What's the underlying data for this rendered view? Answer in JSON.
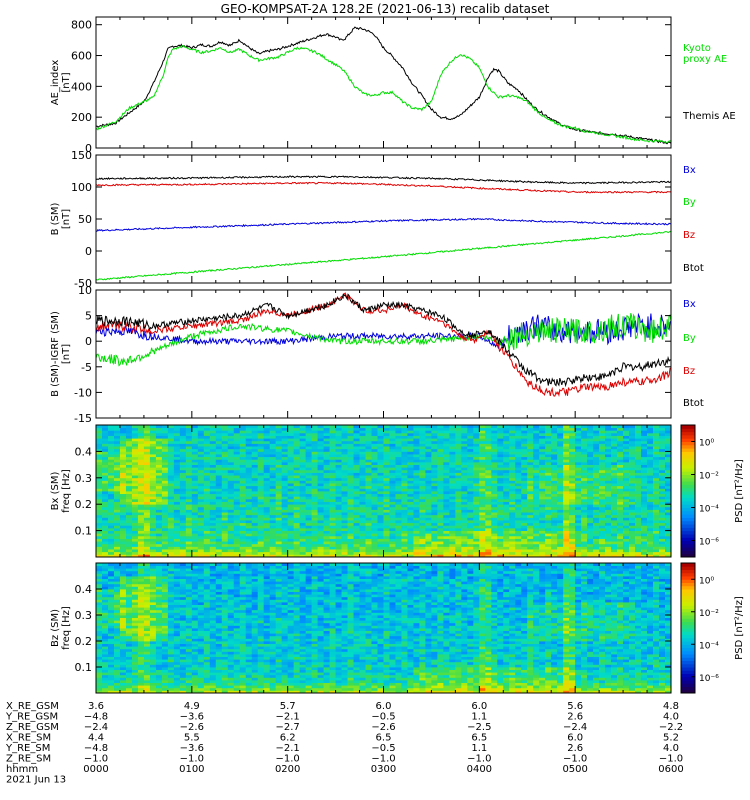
{
  "title": "GEO-KOMPSAT-2A 128.2E (2021-06-13) recalib dataset",
  "chart_data": [
    {
      "id": "ae",
      "type": "line",
      "ylabel": "AE_index",
      "yunit": "[nT]",
      "ylim": [
        0,
        850
      ],
      "yticks": [
        0,
        200,
        400,
        600,
        800
      ],
      "xlim": [
        0,
        6
      ],
      "series": [
        {
          "name": "Themis AE",
          "color": "#000000",
          "x": [
            0,
            0.2,
            0.35,
            0.5,
            0.6,
            0.7,
            0.75,
            0.8,
            0.9,
            1.0,
            1.1,
            1.2,
            1.3,
            1.4,
            1.5,
            1.6,
            1.7,
            1.8,
            1.9,
            2.0,
            2.1,
            2.2,
            2.3,
            2.4,
            2.5,
            2.55,
            2.6,
            2.7,
            2.8,
            2.9,
            3.0,
            3.1,
            3.2,
            3.3,
            3.4,
            3.5,
            3.6,
            3.7,
            3.8,
            3.9,
            4.0,
            4.05,
            4.1,
            4.15,
            4.2,
            4.3,
            4.4,
            4.5,
            4.6,
            4.7,
            4.8,
            4.9,
            5.0,
            5.1,
            5.2,
            5.3,
            5.4,
            5.5,
            5.6,
            5.7,
            5.8,
            5.9,
            6.0
          ],
          "y": [
            140,
            160,
            230,
            300,
            420,
            560,
            640,
            660,
            665,
            650,
            670,
            660,
            690,
            665,
            700,
            650,
            610,
            630,
            640,
            660,
            680,
            700,
            720,
            740,
            720,
            700,
            710,
            780,
            770,
            740,
            650,
            590,
            520,
            420,
            340,
            250,
            200,
            190,
            210,
            270,
            330,
            400,
            470,
            510,
            500,
            420,
            380,
            310,
            250,
            210,
            170,
            140,
            120,
            110,
            100,
            95,
            90,
            80,
            70,
            60,
            50,
            40,
            30
          ]
        },
        {
          "name": "Kyoto proxy AE",
          "color": "#00dd00",
          "x": [
            0,
            0.2,
            0.35,
            0.5,
            0.6,
            0.7,
            0.75,
            0.8,
            0.9,
            1.0,
            1.1,
            1.2,
            1.3,
            1.4,
            1.5,
            1.6,
            1.7,
            1.8,
            1.9,
            2.0,
            2.1,
            2.2,
            2.3,
            2.4,
            2.5,
            2.55,
            2.6,
            2.7,
            2.8,
            2.9,
            3.0,
            3.1,
            3.2,
            3.3,
            3.4,
            3.5,
            3.6,
            3.7,
            3.8,
            3.9,
            4.0,
            4.05,
            4.1,
            4.15,
            4.2,
            4.3,
            4.4,
            4.5,
            4.6,
            4.7,
            4.8,
            4.9,
            5.0,
            5.1,
            5.2,
            5.3,
            5.4,
            5.5,
            5.6,
            5.7,
            5.8,
            5.9,
            6.0
          ],
          "y": [
            120,
            170,
            260,
            300,
            330,
            470,
            580,
            640,
            660,
            640,
            620,
            630,
            650,
            620,
            640,
            600,
            570,
            580,
            590,
            620,
            650,
            640,
            620,
            580,
            540,
            520,
            490,
            400,
            350,
            340,
            360,
            360,
            300,
            260,
            250,
            300,
            480,
            560,
            610,
            580,
            520,
            450,
            390,
            360,
            330,
            340,
            330,
            300,
            240,
            190,
            160,
            140,
            130,
            110,
            100,
            90,
            80,
            70,
            60,
            50,
            45,
            45,
            40
          ]
        }
      ]
    },
    {
      "id": "b",
      "type": "line",
      "ylabel": "B (SM)",
      "yunit": "[nT]",
      "ylim": [
        -50,
        150
      ],
      "yticks": [
        -50,
        0,
        50,
        100,
        150
      ],
      "xlim": [
        0,
        6
      ],
      "legend": [
        "Bx",
        "By",
        "Bz",
        "Btot"
      ],
      "series": [
        {
          "name": "Bx",
          "color": "#0000dd",
          "x": [
            0,
            1,
            2,
            3,
            4,
            4.5,
            5,
            5.5,
            6
          ],
          "y": [
            32,
            37,
            42,
            47,
            50,
            47,
            45,
            43,
            42
          ]
        },
        {
          "name": "By",
          "color": "#00dd00",
          "x": [
            0,
            1,
            2,
            3,
            4,
            5,
            6
          ],
          "y": [
            -45,
            -33,
            -21,
            -9,
            4,
            17,
            30
          ]
        },
        {
          "name": "Bz",
          "color": "#dd0000",
          "x": [
            0,
            1,
            2,
            2.6,
            3,
            3.6,
            4,
            4.5,
            5,
            5.5,
            6
          ],
          "y": [
            103,
            104,
            106,
            106,
            104,
            101,
            98,
            95,
            92,
            92,
            92
          ]
        },
        {
          "name": "Btot",
          "color": "#000000",
          "x": [
            0,
            1,
            2,
            2.6,
            3,
            3.6,
            4,
            4.5,
            5,
            5.5,
            6
          ],
          "y": [
            113,
            114,
            116,
            116,
            115,
            113,
            111,
            108,
            106,
            107,
            108
          ]
        }
      ]
    },
    {
      "id": "db",
      "type": "line",
      "ylabel": "B (SM)-IGRF (SM)",
      "yunit": "[nT]",
      "ylim": [
        -15,
        10
      ],
      "yticks": [
        -15,
        -10,
        -5,
        0,
        5,
        10
      ],
      "xlim": [
        0,
        6
      ],
      "legend": [
        "Bx",
        "By",
        "Bz",
        "Btot"
      ],
      "series": [
        {
          "name": "Bx",
          "color": "#0000dd",
          "x": [
            0,
            0.3,
            0.6,
            1.0,
            1.5,
            2.0,
            2.5,
            3.0,
            3.5,
            4.0,
            4.2,
            4.4,
            4.6,
            4.8,
            5.0,
            5.2,
            5.4,
            5.6,
            5.8,
            6.0
          ],
          "y": [
            2,
            2,
            1,
            0,
            0,
            0,
            1,
            1,
            1,
            1,
            -1,
            2,
            3,
            2,
            2,
            2,
            2,
            3,
            3,
            3
          ]
        },
        {
          "name": "By",
          "color": "#00dd00",
          "x": [
            0,
            0.3,
            0.6,
            1.0,
            1.5,
            2.0,
            2.5,
            3.0,
            3.5,
            4.0,
            4.2,
            4.4,
            4.6,
            4.8,
            5.0,
            5.2,
            5.4,
            5.6,
            5.8,
            6.0
          ],
          "y": [
            -3,
            -4,
            -2,
            1,
            3,
            2,
            0,
            0,
            0,
            1,
            0,
            1,
            2,
            2,
            2,
            2,
            3,
            3,
            2,
            3
          ]
        },
        {
          "name": "Bz",
          "color": "#dd0000",
          "x": [
            0,
            0.3,
            0.6,
            1.0,
            1.5,
            1.8,
            2.0,
            2.4,
            2.6,
            2.8,
            3.0,
            3.2,
            3.4,
            3.6,
            3.8,
            3.95,
            4.0,
            4.1,
            4.2,
            4.3,
            4.5,
            4.7,
            4.9,
            5.1,
            5.3,
            5.5,
            5.7,
            5.9,
            6.0
          ],
          "y": [
            3,
            3,
            2,
            3,
            4,
            6,
            5,
            7,
            9,
            6,
            6,
            7,
            5,
            4,
            1,
            0,
            1,
            2,
            -1,
            -3,
            -8,
            -10,
            -10,
            -9,
            -9,
            -8,
            -8,
            -7,
            -6
          ]
        },
        {
          "name": "Btot",
          "color": "#000000",
          "x": [
            0,
            0.3,
            0.6,
            1.0,
            1.5,
            1.8,
            2.0,
            2.4,
            2.6,
            2.8,
            3.0,
            3.2,
            3.4,
            3.6,
            3.8,
            3.95,
            4.0,
            4.1,
            4.2,
            4.3,
            4.5,
            4.7,
            4.9,
            5.1,
            5.3,
            5.5,
            5.7,
            5.9,
            6.0
          ],
          "y": [
            4,
            4,
            3,
            4,
            5,
            7,
            5,
            7,
            9,
            6,
            7,
            7,
            6,
            5,
            2,
            1,
            2,
            2,
            0,
            -2,
            -6,
            -8,
            -8,
            -7,
            -7,
            -5,
            -5,
            -4,
            -4
          ]
        }
      ]
    },
    {
      "id": "spec_bx",
      "type": "heatmap",
      "ylabel": "Bx (SM)",
      "yunit": "freq [Hz]",
      "ylim": [
        0,
        0.5
      ],
      "yticks": [
        0.1,
        0.2,
        0.3,
        0.4
      ],
      "xlim": [
        0,
        6
      ],
      "colorbar": {
        "label": "PSD [nT²/Hz]",
        "ticks": [
          "10⁰",
          "10⁻²",
          "10⁻⁴",
          "10⁻⁶"
        ],
        "log_range": [
          -7,
          1
        ]
      },
      "notes": "Background PSD ~1e-3 to 1e-4, enhanced (1e-1 to 1e0) below 0.05 Hz and near 0.2-0.4 Hz around 00:30-00:45"
    },
    {
      "id": "spec_bz",
      "type": "heatmap",
      "ylabel": "Bz (SM)",
      "yunit": "freq [Hz]",
      "ylim": [
        0,
        0.5
      ],
      "yticks": [
        0.1,
        0.2,
        0.3,
        0.4
      ],
      "xlim": [
        0,
        6
      ],
      "colorbar": {
        "label": "PSD [nT²/Hz]",
        "ticks": [
          "10⁰",
          "10⁻²",
          "10⁻⁴",
          "10⁻⁶"
        ],
        "log_range": [
          -7,
          1
        ]
      },
      "notes": "Similar structure to Bx spectrogram, slightly lower PSD"
    }
  ],
  "orbit_table": {
    "row_labels": [
      "X_RE_GSM",
      "Y_RE_GSM",
      "Z_RE_GSM",
      "X_RE_SM",
      "Y_RE_SM",
      "Z_RE_SM",
      "hhmm",
      "2021 Jun 13"
    ],
    "columns": [
      [
        "3.6",
        "-4.8",
        "-2.4",
        "4.4",
        "-4.8",
        "-1.0",
        "0000"
      ],
      [
        "4.9",
        "-3.6",
        "-2.6",
        "5.5",
        "-3.6",
        "-1.0",
        "0100"
      ],
      [
        "5.7",
        "-2.1",
        "-2.7",
        "6.2",
        "-2.1",
        "-1.0",
        "0200"
      ],
      [
        "6.0",
        "-0.5",
        "-2.6",
        "6.5",
        "-0.5",
        "-1.0",
        "0300"
      ],
      [
        "6.0",
        "1.1",
        "-2.5",
        "6.5",
        "1.1",
        "-1.0",
        "0400"
      ],
      [
        "5.6",
        "2.6",
        "-2.4",
        "6.0",
        "2.6",
        "-1.0",
        "0500"
      ],
      [
        "4.8",
        "4.0",
        "-2.2",
        "5.2",
        "4.0",
        "-1.0",
        "0600"
      ]
    ]
  }
}
